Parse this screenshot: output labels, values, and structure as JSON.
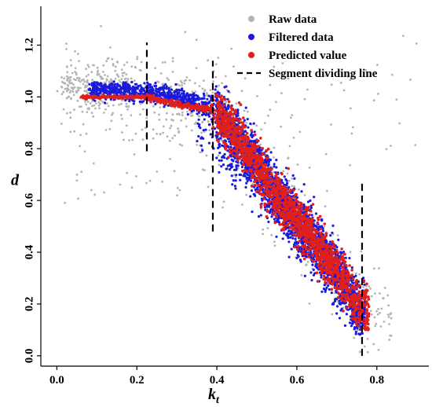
{
  "chart_data": {
    "type": "scatter",
    "xlabel": "k",
    "xlabel_subscript": "t",
    "ylabel": "d",
    "xlim": [
      -0.04,
      0.93
    ],
    "ylim": [
      -0.04,
      1.35
    ],
    "x_ticks": [
      "0.0",
      "0.2",
      "0.4",
      "0.6",
      "0.8"
    ],
    "y_ticks": [
      "0.0",
      "0.2",
      "0.4",
      "0.6",
      "0.8",
      "1.0",
      "1.2"
    ],
    "grid": false,
    "legend_position": "top-right",
    "series": [
      {
        "name": "Raw data",
        "marker": "point",
        "color": "#b4b4b4",
        "approx_count": 900,
        "trend": [
          [
            0.02,
            1.05
          ],
          [
            0.1,
            1.03
          ],
          [
            0.2,
            1.01
          ],
          [
            0.3,
            0.98
          ],
          [
            0.39,
            0.94
          ],
          [
            0.45,
            0.84
          ],
          [
            0.55,
            0.62
          ],
          [
            0.65,
            0.42
          ],
          [
            0.72,
            0.28
          ],
          [
            0.77,
            0.18
          ],
          [
            0.9,
            0.12
          ]
        ]
      },
      {
        "name": "Filtered data",
        "marker": "point",
        "color": "#1a1adc",
        "approx_count": 3500,
        "trend": [
          [
            0.1,
            1.03
          ],
          [
            0.2,
            1.02
          ],
          [
            0.3,
            1.0
          ],
          [
            0.39,
            0.96
          ],
          [
            0.45,
            0.83
          ],
          [
            0.55,
            0.62
          ],
          [
            0.65,
            0.42
          ],
          [
            0.72,
            0.28
          ],
          [
            0.76,
            0.16
          ]
        ]
      },
      {
        "name": "Predicted value",
        "marker": "point",
        "color": "#e0201c",
        "approx_count": 2000,
        "trend": [
          [
            0.06,
            1.0
          ],
          [
            0.2,
            1.0
          ],
          [
            0.225,
            1.0
          ],
          [
            0.3,
            0.97
          ],
          [
            0.39,
            0.95
          ],
          [
            0.45,
            0.85
          ],
          [
            0.55,
            0.62
          ],
          [
            0.65,
            0.43
          ],
          [
            0.72,
            0.28
          ],
          [
            0.77,
            0.16
          ]
        ]
      },
      {
        "name": "Segment dividing line",
        "marker": "dashed-vertical",
        "color": "#000000",
        "lines": [
          {
            "x": 0.225,
            "y_from": 0.79,
            "y_to": 1.21
          },
          {
            "x": 0.39,
            "y_from": 0.48,
            "y_to": 1.14
          },
          {
            "x": 0.763,
            "y_from": 0.0,
            "y_to": 0.68
          }
        ]
      }
    ]
  }
}
